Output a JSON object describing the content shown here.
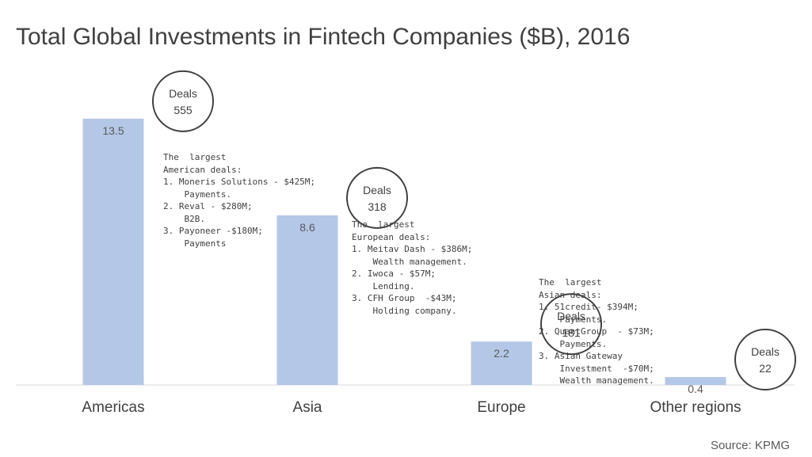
{
  "title": "Total Global Investments in Fintech Companies ($B), 2016",
  "source": "Source:  KPMG",
  "chart_data": {
    "type": "bar",
    "title": "Total Global Investments in Fintech Companies ($B), 2016",
    "categories": [
      "Americas",
      "Asia",
      "Europe",
      "Other regions"
    ],
    "values": [
      13.5,
      8.6,
      2.2,
      0.4
    ],
    "data_labels": [
      "13.5",
      "8.6",
      "2.2",
      "0.4"
    ],
    "ylim": [
      0,
      15.1
    ],
    "grid": false,
    "legend": "none",
    "bar_color": "#b4c7e7",
    "deals": [
      {
        "label": "Deals",
        "count": "555"
      },
      {
        "label": "Deals",
        "count": "318"
      },
      {
        "label": "Deals",
        "count": "181"
      },
      {
        "label": "Deals",
        "count": "22"
      }
    ]
  },
  "notes": [
    "The  largest\nAmerican deals:\n1. Moneris Solutions - $425M;\n    Payments.\n2. Reval - $280M;\n    B2B.\n3. Payoneer -$180M;\n    Payments",
    "The  largest\nEuropean deals:\n1. Meitav Dash - $386M;\n    Wealth management.\n2. Iwoca - $57M;\n    Lending.\n3. CFH Group  -$43M;\n    Holding company.",
    "The  largest\nAsian deals:\n1. 51credit- $394M;\n    Payments.\n2. QuantGroup  - $73M;\n    Payments.\n3. Asian Gateway\n    Investment  -$70M;\n    Wealth management."
  ]
}
